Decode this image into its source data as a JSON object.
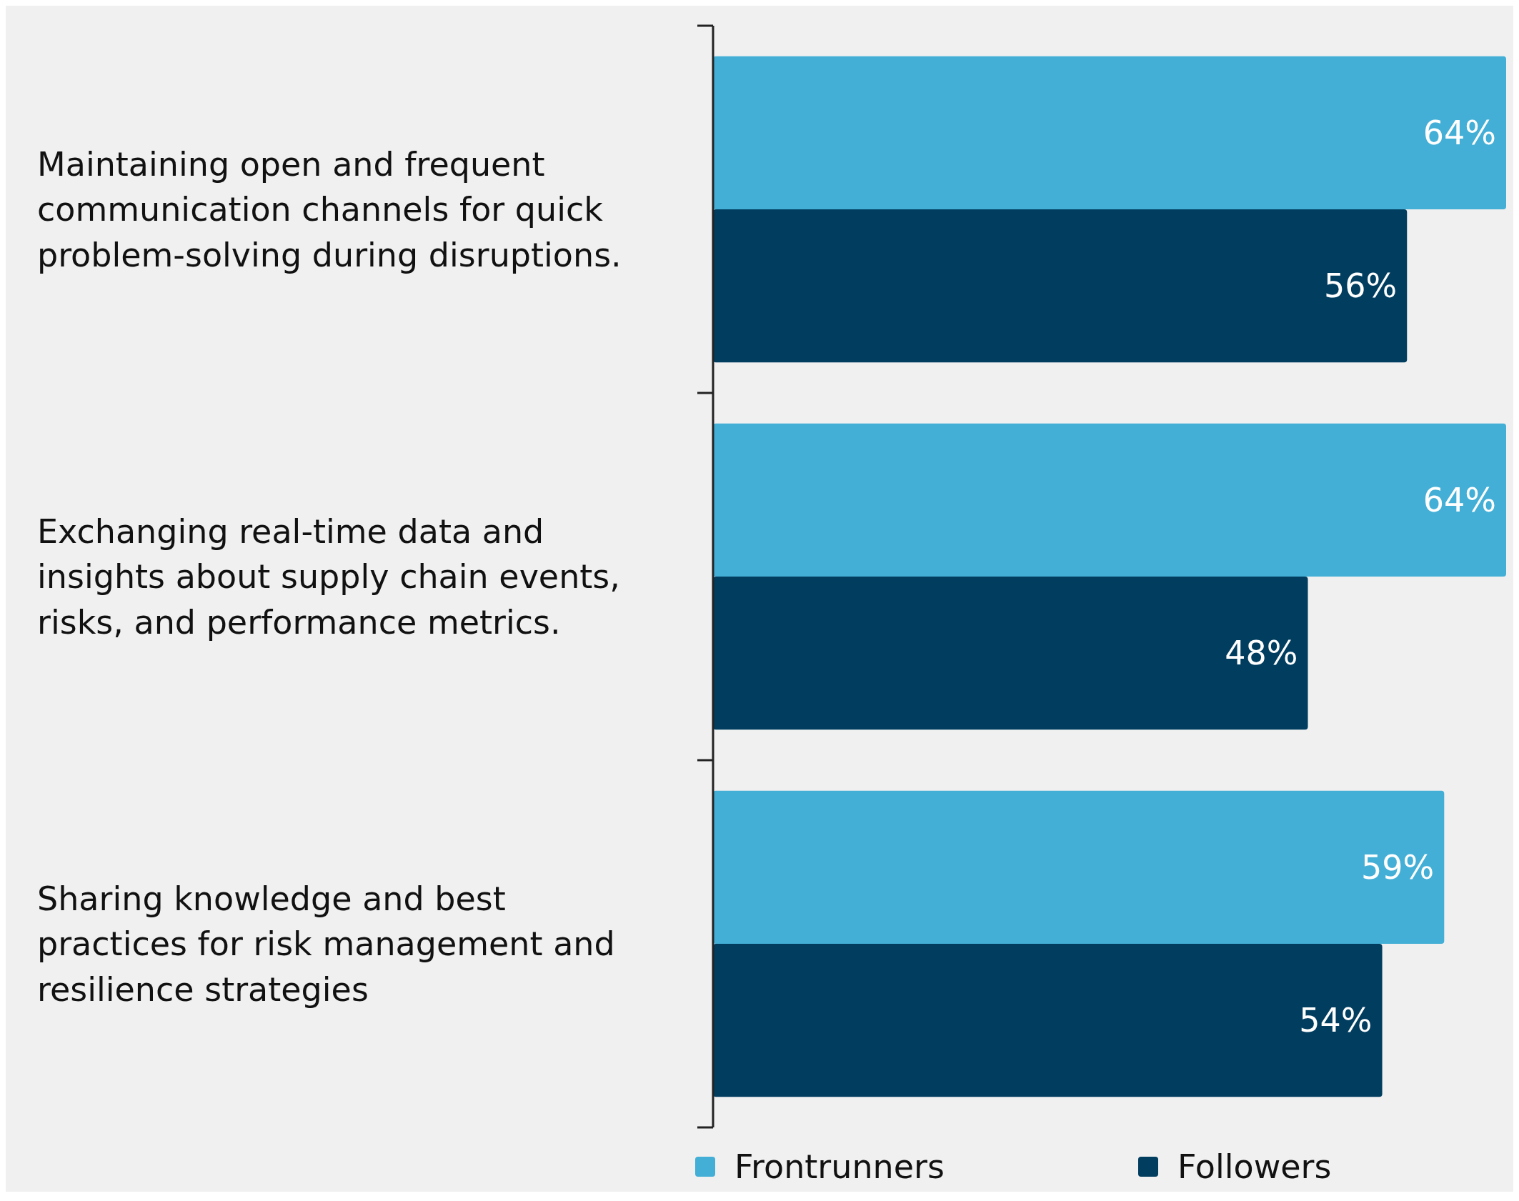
{
  "chart_data": {
    "type": "bar",
    "orientation": "horizontal",
    "categories": [
      "Maintaining open and frequent communication channels for quick problem-solving during disruptions.",
      "Exchanging real-time data and insights about supply chain events, risks, and performance metrics.",
      "Sharing knowledge and best practices for risk management and resilience strategies"
    ],
    "series": [
      {
        "name": "Frontrunners",
        "color": "#43afd6",
        "values": [
          64,
          64,
          59
        ],
        "value_labels": [
          "64%",
          "64%",
          "59%"
        ]
      },
      {
        "name": "Followers",
        "color": "#003d5f",
        "values": [
          56,
          48,
          54
        ],
        "value_labels": [
          "56%",
          "48%",
          "54%"
        ]
      }
    ],
    "legend": "bottom"
  }
}
